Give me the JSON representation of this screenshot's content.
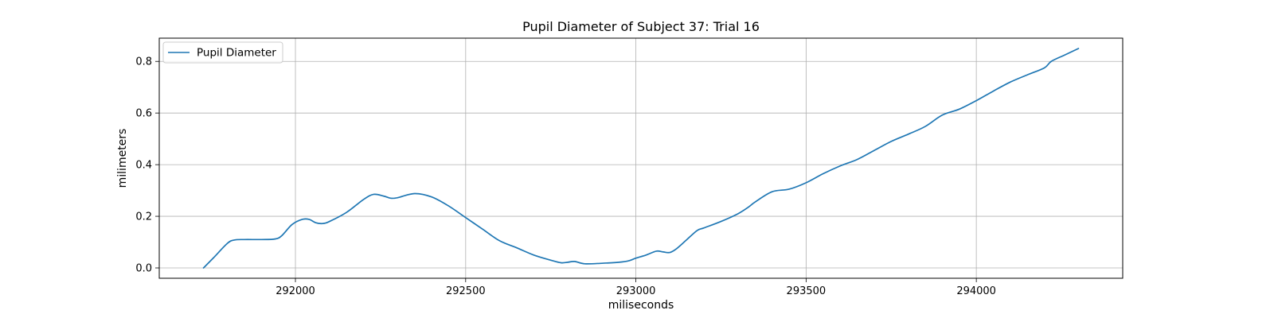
{
  "chart_data": {
    "type": "line",
    "title": "Pupil Diameter of Subject 37: Trial 16",
    "xlabel": "miliseconds",
    "ylabel": "milimeters",
    "xlim": [
      291600,
      294430
    ],
    "ylim": [
      -0.04,
      0.89
    ],
    "xticks": [
      292000,
      292500,
      293000,
      293500,
      294000
    ],
    "yticks": [
      0.0,
      0.2,
      0.4,
      0.6,
      0.8
    ],
    "xtick_labels": [
      "292000",
      "292500",
      "293000",
      "293500",
      "294000"
    ],
    "ytick_labels": [
      "0.0",
      "0.2",
      "0.4",
      "0.6",
      "0.8"
    ],
    "grid": true,
    "legend_position": "top-left",
    "series": [
      {
        "name": "Pupil Diameter",
        "color": "#1f77b4",
        "x": [
          291730,
          291760,
          291800,
          291820,
          291850,
          291900,
          291940,
          291960,
          291990,
          292020,
          292040,
          292060,
          292080,
          292100,
          292150,
          292200,
          292230,
          292260,
          292280,
          292300,
          292350,
          292400,
          292450,
          292500,
          292550,
          292600,
          292650,
          292700,
          292750,
          292780,
          292800,
          292820,
          292850,
          292900,
          292950,
          292980,
          293000,
          293030,
          293060,
          293080,
          293100,
          293120,
          293150,
          293180,
          293200,
          293250,
          293300,
          293330,
          293350,
          293400,
          293450,
          293500,
          293550,
          293600,
          293650,
          293700,
          293750,
          293800,
          293850,
          293900,
          293950,
          294000,
          294050,
          294100,
          294150,
          294200,
          294220,
          294260,
          294300
        ],
        "values": [
          0.0,
          0.04,
          0.095,
          0.108,
          0.11,
          0.11,
          0.112,
          0.125,
          0.168,
          0.188,
          0.188,
          0.175,
          0.172,
          0.18,
          0.215,
          0.265,
          0.285,
          0.278,
          0.27,
          0.272,
          0.288,
          0.275,
          0.24,
          0.195,
          0.15,
          0.105,
          0.078,
          0.05,
          0.03,
          0.02,
          0.022,
          0.025,
          0.016,
          0.018,
          0.022,
          0.028,
          0.038,
          0.05,
          0.065,
          0.062,
          0.06,
          0.075,
          0.11,
          0.145,
          0.155,
          0.18,
          0.21,
          0.235,
          0.255,
          0.295,
          0.305,
          0.33,
          0.365,
          0.395,
          0.42,
          0.455,
          0.49,
          0.518,
          0.548,
          0.592,
          0.615,
          0.648,
          0.685,
          0.72,
          0.748,
          0.775,
          0.8,
          0.825,
          0.85
        ]
      }
    ]
  }
}
